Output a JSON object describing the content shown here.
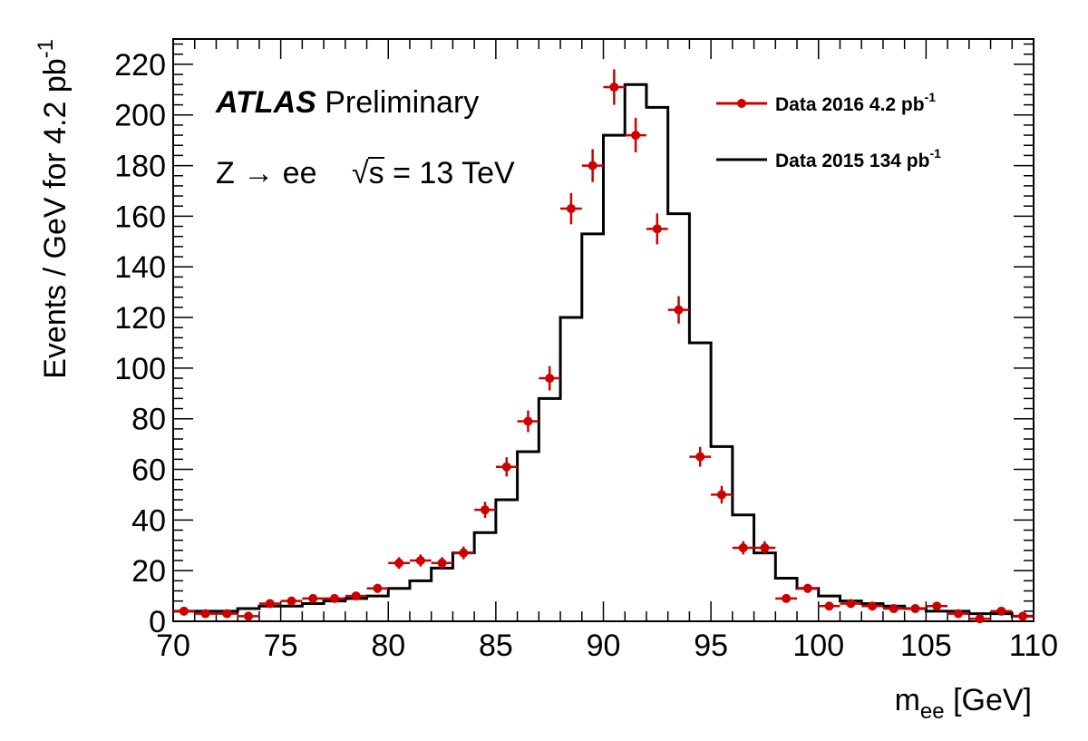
{
  "chart_data": {
    "type": "line",
    "xlim": [
      70,
      110
    ],
    "ylim": [
      0,
      230
    ],
    "x_ticks": [
      "70",
      "75",
      "80",
      "85",
      "90",
      "95",
      "100",
      "105",
      "110"
    ],
    "y_ticks": [
      "0",
      "20",
      "40",
      "60",
      "80",
      "100",
      "120",
      "140",
      "160",
      "180",
      "200",
      "220"
    ],
    "xlabel": {
      "main": "m",
      "sub": "ee",
      "unit": " [GeV]"
    },
    "ylabel": {
      "main": "Events / GeV  for 4.2  pb",
      "sup": "-1"
    },
    "annotations": {
      "experiment": "ATLAS",
      "status": " Preliminary",
      "process": "Z → ee",
      "energy_sqrt": "√",
      "energy": "s = 13 TeV"
    },
    "legend": {
      "position": "top-right",
      "entries": [
        {
          "label": "Data 2016  4.2 pb",
          "sup": "-1"
        },
        {
          "label": "Data 2015  134 pb",
          "sup": "-1"
        }
      ]
    },
    "colors": {
      "points": "#cc0000",
      "histogram": "#000000"
    },
    "series": [
      {
        "style": "points-with-errors",
        "bin_width": 1,
        "x": [
          70.5,
          71.5,
          72.5,
          73.5,
          74.5,
          75.5,
          76.5,
          77.5,
          78.5,
          79.5,
          80.5,
          81.5,
          82.5,
          83.5,
          84.5,
          85.5,
          86.5,
          87.5,
          88.5,
          89.5,
          90.5,
          91.5,
          92.5,
          93.5,
          94.5,
          95.5,
          96.5,
          97.5,
          98.5,
          99.5,
          100.5,
          101.5,
          102.5,
          103.5,
          104.5,
          105.5,
          106.5,
          107.5,
          108.5,
          109.5
        ],
        "y": [
          4,
          3,
          3,
          2,
          7,
          8,
          9,
          9,
          10,
          13,
          23,
          24,
          23,
          27,
          44,
          61,
          79,
          96,
          163,
          180,
          211,
          192,
          155,
          123,
          65,
          50,
          29,
          29,
          9,
          13,
          6,
          7,
          6,
          5,
          5,
          6,
          3,
          1,
          4,
          2
        ],
        "err": [
          1,
          1,
          1,
          1,
          1.3,
          1.4,
          1.5,
          1.5,
          1.6,
          1.8,
          2.3,
          2.4,
          2.3,
          2.5,
          3.2,
          3.8,
          4.3,
          4.8,
          6.2,
          6.5,
          7,
          6.8,
          6.1,
          5.4,
          3.9,
          3.5,
          2.6,
          2.6,
          1.5,
          1.8,
          1.2,
          1.3,
          1.2,
          1.1,
          1.1,
          1.2,
          1,
          0.5,
          1,
          0.7
        ]
      },
      {
        "style": "step-histogram",
        "bin_edges": [
          70,
          71,
          72,
          73,
          74,
          75,
          76,
          77,
          78,
          79,
          80,
          81,
          82,
          83,
          84,
          85,
          86,
          87,
          88,
          89,
          90,
          91,
          92,
          93,
          94,
          95,
          96,
          97,
          98,
          99,
          100,
          101,
          102,
          103,
          104,
          105,
          106,
          107,
          108,
          109,
          110
        ],
        "y": [
          4,
          4,
          4,
          5,
          6,
          6,
          7,
          8,
          9,
          10,
          13,
          16,
          21,
          27,
          35,
          48,
          67,
          88,
          120,
          153,
          192,
          212,
          203,
          161,
          110,
          69,
          42,
          27,
          17,
          13,
          10,
          8,
          7,
          6,
          5,
          4,
          4,
          3,
          3,
          2
        ]
      }
    ]
  }
}
